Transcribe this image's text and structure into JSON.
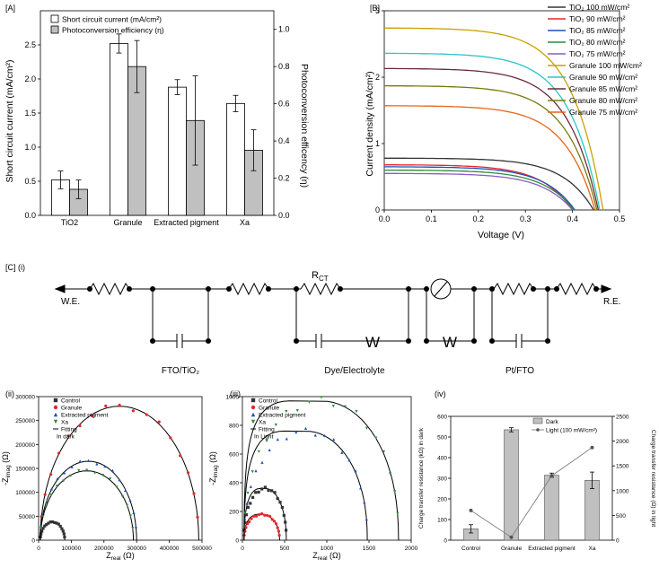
{
  "chart_data": [
    {
      "id": "A",
      "panel_label": "[A]",
      "type": "bar",
      "categories": [
        "TiO2",
        "Granule",
        "Extracted pigment",
        "Xa"
      ],
      "series": [
        {
          "name": "Short circuit current (mA/cm²)",
          "axis": "left",
          "color": "#ffffff",
          "values": [
            0.52,
            2.52,
            1.88,
            1.64
          ],
          "errors": [
            0.13,
            0.14,
            0.11,
            0.12
          ]
        },
        {
          "name": "Photoconversion efficiency (η)",
          "axis": "right",
          "color": "#c0c0c0",
          "values": [
            0.14,
            0.8,
            0.51,
            0.35
          ],
          "errors": [
            0.05,
            0.14,
            0.24,
            0.11
          ]
        }
      ],
      "ylabel": "Short circuit current (mA/cm²)",
      "y2label": "Photoconversion efficency (η)",
      "ylim": [
        0,
        3.0
      ],
      "y2lim": [
        0,
        1.1
      ],
      "yticks": [
        "0.0",
        "0.5",
        "1.0",
        "1.5",
        "2.0",
        "2.5"
      ],
      "y2ticks": [
        "0.0",
        "0.2",
        "0.4",
        "0.6",
        "0.8",
        "1.0"
      ],
      "legend": [
        "Short circuit current (mA/cm²)",
        "Photoconversion efficiency (η)"
      ]
    },
    {
      "id": "B",
      "panel_label": "[B]",
      "type": "line",
      "xlabel": "Voltage (V)",
      "ylabel": "Current density (mA/cm²)",
      "xlim": [
        0,
        0.5
      ],
      "ylim": [
        0,
        3.0
      ],
      "xticks": [
        "0.0",
        "0.1",
        "0.2",
        "0.3",
        "0.4",
        "0.5"
      ],
      "yticks": [
        "0",
        "1",
        "2",
        "3"
      ],
      "series": [
        {
          "name": "TiO₂ 100 mW/cm²",
          "color": "#333333",
          "jsc": 0.78,
          "voc": 0.445
        },
        {
          "name": "TiO₂ 90 mW/cm²",
          "color": "#e8262a",
          "jsc": 0.68,
          "voc": 0.4
        },
        {
          "name": "TiO₂ 85 mW/cm²",
          "color": "#1f4fbf",
          "jsc": 0.65,
          "voc": 0.405
        },
        {
          "name": "TiO₂ 80 mW/cm²",
          "color": "#2e8b3a",
          "jsc": 0.6,
          "voc": 0.403
        },
        {
          "name": "TiO₂ 75 mW/cm²",
          "color": "#8a5cc4",
          "jsc": 0.55,
          "voc": 0.4
        },
        {
          "name": "Granule 100 mW/cm²",
          "color": "#c9a000",
          "jsc": 2.74,
          "voc": 0.465
        },
        {
          "name": "Granule 90 mW/cm²",
          "color": "#2bc4c8",
          "jsc": 2.36,
          "voc": 0.458
        },
        {
          "name": "Granule 85 mW/cm²",
          "color": "#6a2b3a",
          "jsc": 2.13,
          "voc": 0.455
        },
        {
          "name": "Granule 80 mW/cm²",
          "color": "#7a7a10",
          "jsc": 1.87,
          "voc": 0.452
        },
        {
          "name": "Granule 75 mW/cm²",
          "color": "#e8641a",
          "jsc": 1.57,
          "voc": 0.448
        }
      ]
    },
    {
      "id": "ii",
      "panel_label": "(ii)",
      "type": "scatter",
      "xlabel": "Z",
      "xlabel_sub": "real",
      "xlabel_unit": " (Ω)",
      "ylabel": "-Z",
      "ylabel_sub": "imag",
      "ylabel_unit": " (Ω)",
      "xlim": [
        0,
        500000
      ],
      "ylim": [
        0,
        300000
      ],
      "xticks": [
        "0",
        "100000",
        "200000",
        "300000",
        "400000",
        "500000"
      ],
      "yticks": [
        "0",
        "50000",
        "100000",
        "150000",
        "200000",
        "250000",
        "300000"
      ],
      "note": "In dark",
      "series": [
        {
          "name": "Control",
          "marker": "square",
          "color": "#333333",
          "x0": 5000,
          "x1": 80000
        },
        {
          "name": "Granule",
          "marker": "circle",
          "color": "#e8262a",
          "x0": 5000,
          "x1": 490000
        },
        {
          "name": "Extracted pigment",
          "marker": "triangle-up",
          "color": "#1f4fbf",
          "x0": 5000,
          "x1": 300000
        },
        {
          "name": "Xa",
          "marker": "triangle-down",
          "color": "#2e8b3a",
          "x0": 5000,
          "x1": 290000
        }
      ],
      "fit_label": "Fitting",
      "arc_peaks": [
        38000,
        280000,
        165000,
        145000
      ]
    },
    {
      "id": "iii",
      "panel_label": "(iii)",
      "type": "scatter",
      "xlabel": "Z",
      "xlabel_sub": "real",
      "xlabel_unit": " (Ω)",
      "ylabel": "-Z",
      "ylabel_sub": "imag",
      "ylabel_unit": " (Ω)",
      "xlim": [
        0,
        2000
      ],
      "ylim": [
        0,
        1000
      ],
      "xticks": [
        "0",
        "500",
        "1000",
        "1500",
        "2000"
      ],
      "yticks": [
        "0",
        "200",
        "400",
        "600",
        "800",
        "1000"
      ],
      "note": "In Light",
      "series": [
        {
          "name": "Control",
          "marker": "square",
          "color": "#333333"
        },
        {
          "name": "Granule",
          "marker": "circle",
          "color": "#e8262a"
        },
        {
          "name": "Extracted pigment",
          "marker": "triangle-up",
          "color": "#1f4fbf"
        },
        {
          "name": "Xa",
          "marker": "triangle-down",
          "color": "#2e8b3a"
        }
      ],
      "fit_label": "Fitting"
    },
    {
      "id": "iv",
      "panel_label": "(iv)",
      "type": "bar",
      "categories": [
        "Control",
        "Granule",
        "Extracted pigment",
        "Xa"
      ],
      "series": [
        {
          "name": "Dark",
          "axis": "left",
          "color": "#c0c0c0",
          "values": [
            55,
            535,
            315,
            290
          ],
          "errors": [
            20,
            10,
            10,
            40
          ]
        },
        {
          "name": "Light (100 mW/cm²)",
          "axis": "right",
          "color": "#808080",
          "values": [
            600,
            60,
            1300,
            1870
          ]
        }
      ],
      "ylabel": "Charge transfer resistance (kΩ) in dark",
      "y2label": "Charge transfer resistance (Ω) in light",
      "ylim": [
        0,
        600
      ],
      "y2lim": [
        0,
        2500
      ],
      "yticks": [
        "0",
        "100",
        "200",
        "300",
        "400",
        "500",
        "600"
      ],
      "y2ticks": [
        "0",
        "500",
        "1000",
        "1500",
        "2000",
        "2500"
      ]
    }
  ],
  "circuit": {
    "panel_label": "[C] (i)",
    "we_label": "W.E.",
    "re_label": "R.E.",
    "rct_label": "R",
    "rct_sub": "CT",
    "warburg_label": "W",
    "section_labels": [
      "FTO/TiO₂",
      "Dye/Electrolyte",
      "Pt/FTO"
    ]
  }
}
